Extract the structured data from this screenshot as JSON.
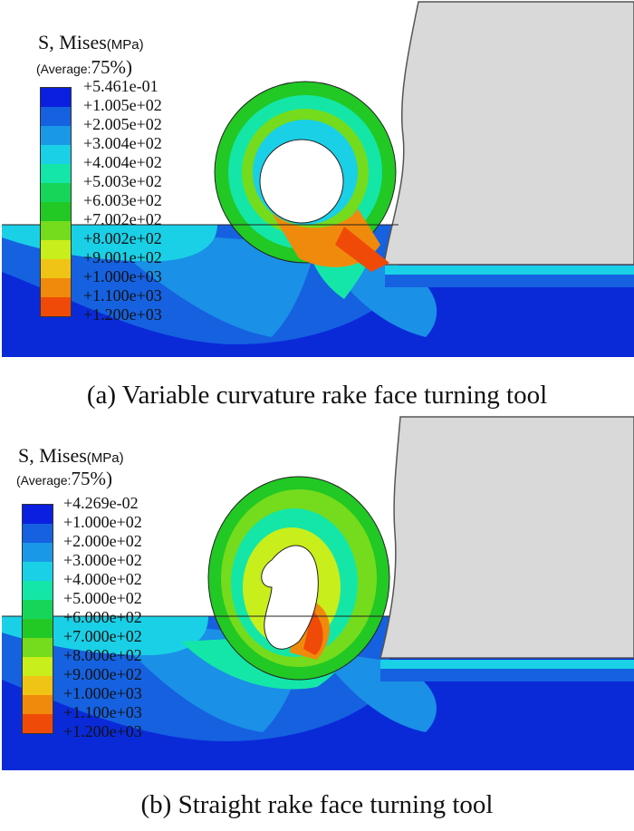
{
  "panels": [
    {
      "legend_title": "S, Mises",
      "legend_unit": "(MPa)",
      "average_label": "(Average:",
      "average_value": "75%)",
      "values": [
        "+5.461e-01",
        "+1.005e+02",
        "+2.005e+02",
        "+3.004e+02",
        "+4.004e+02",
        "+5.003e+02",
        "+6.003e+02",
        "+7.002e+02",
        "+8.002e+02",
        "+9.001e+02",
        "+1.000e+03",
        "+1.100e+03",
        "+1.200e+03"
      ],
      "caption": "(a) Variable curvature rake face turning tool"
    },
    {
      "legend_title": "S, Mises",
      "legend_unit": "(MPa)",
      "average_label": "(Average:",
      "average_value": "75%)",
      "values": [
        "+4.269e-02",
        "+1.000e+02",
        "+2.000e+02",
        "+3.000e+02",
        "+4.000e+02",
        "+5.000e+02",
        "+6.000e+02",
        "+7.000e+02",
        "+8.000e+02",
        "+9.000e+02",
        "+1.000e+03",
        "+1.100e+03",
        "+1.200e+03"
      ],
      "caption": "(b) Straight rake face turning tool"
    }
  ],
  "colormap": [
    "#0a1fe0",
    "#1561e0",
    "#1a98e8",
    "#1ad0e6",
    "#14e6a8",
    "#16d65a",
    "#22c824",
    "#74dc1c",
    "#c8ee1c",
    "#f0c414",
    "#f08a0c",
    "#f04a08",
    "#f00a0a"
  ]
}
